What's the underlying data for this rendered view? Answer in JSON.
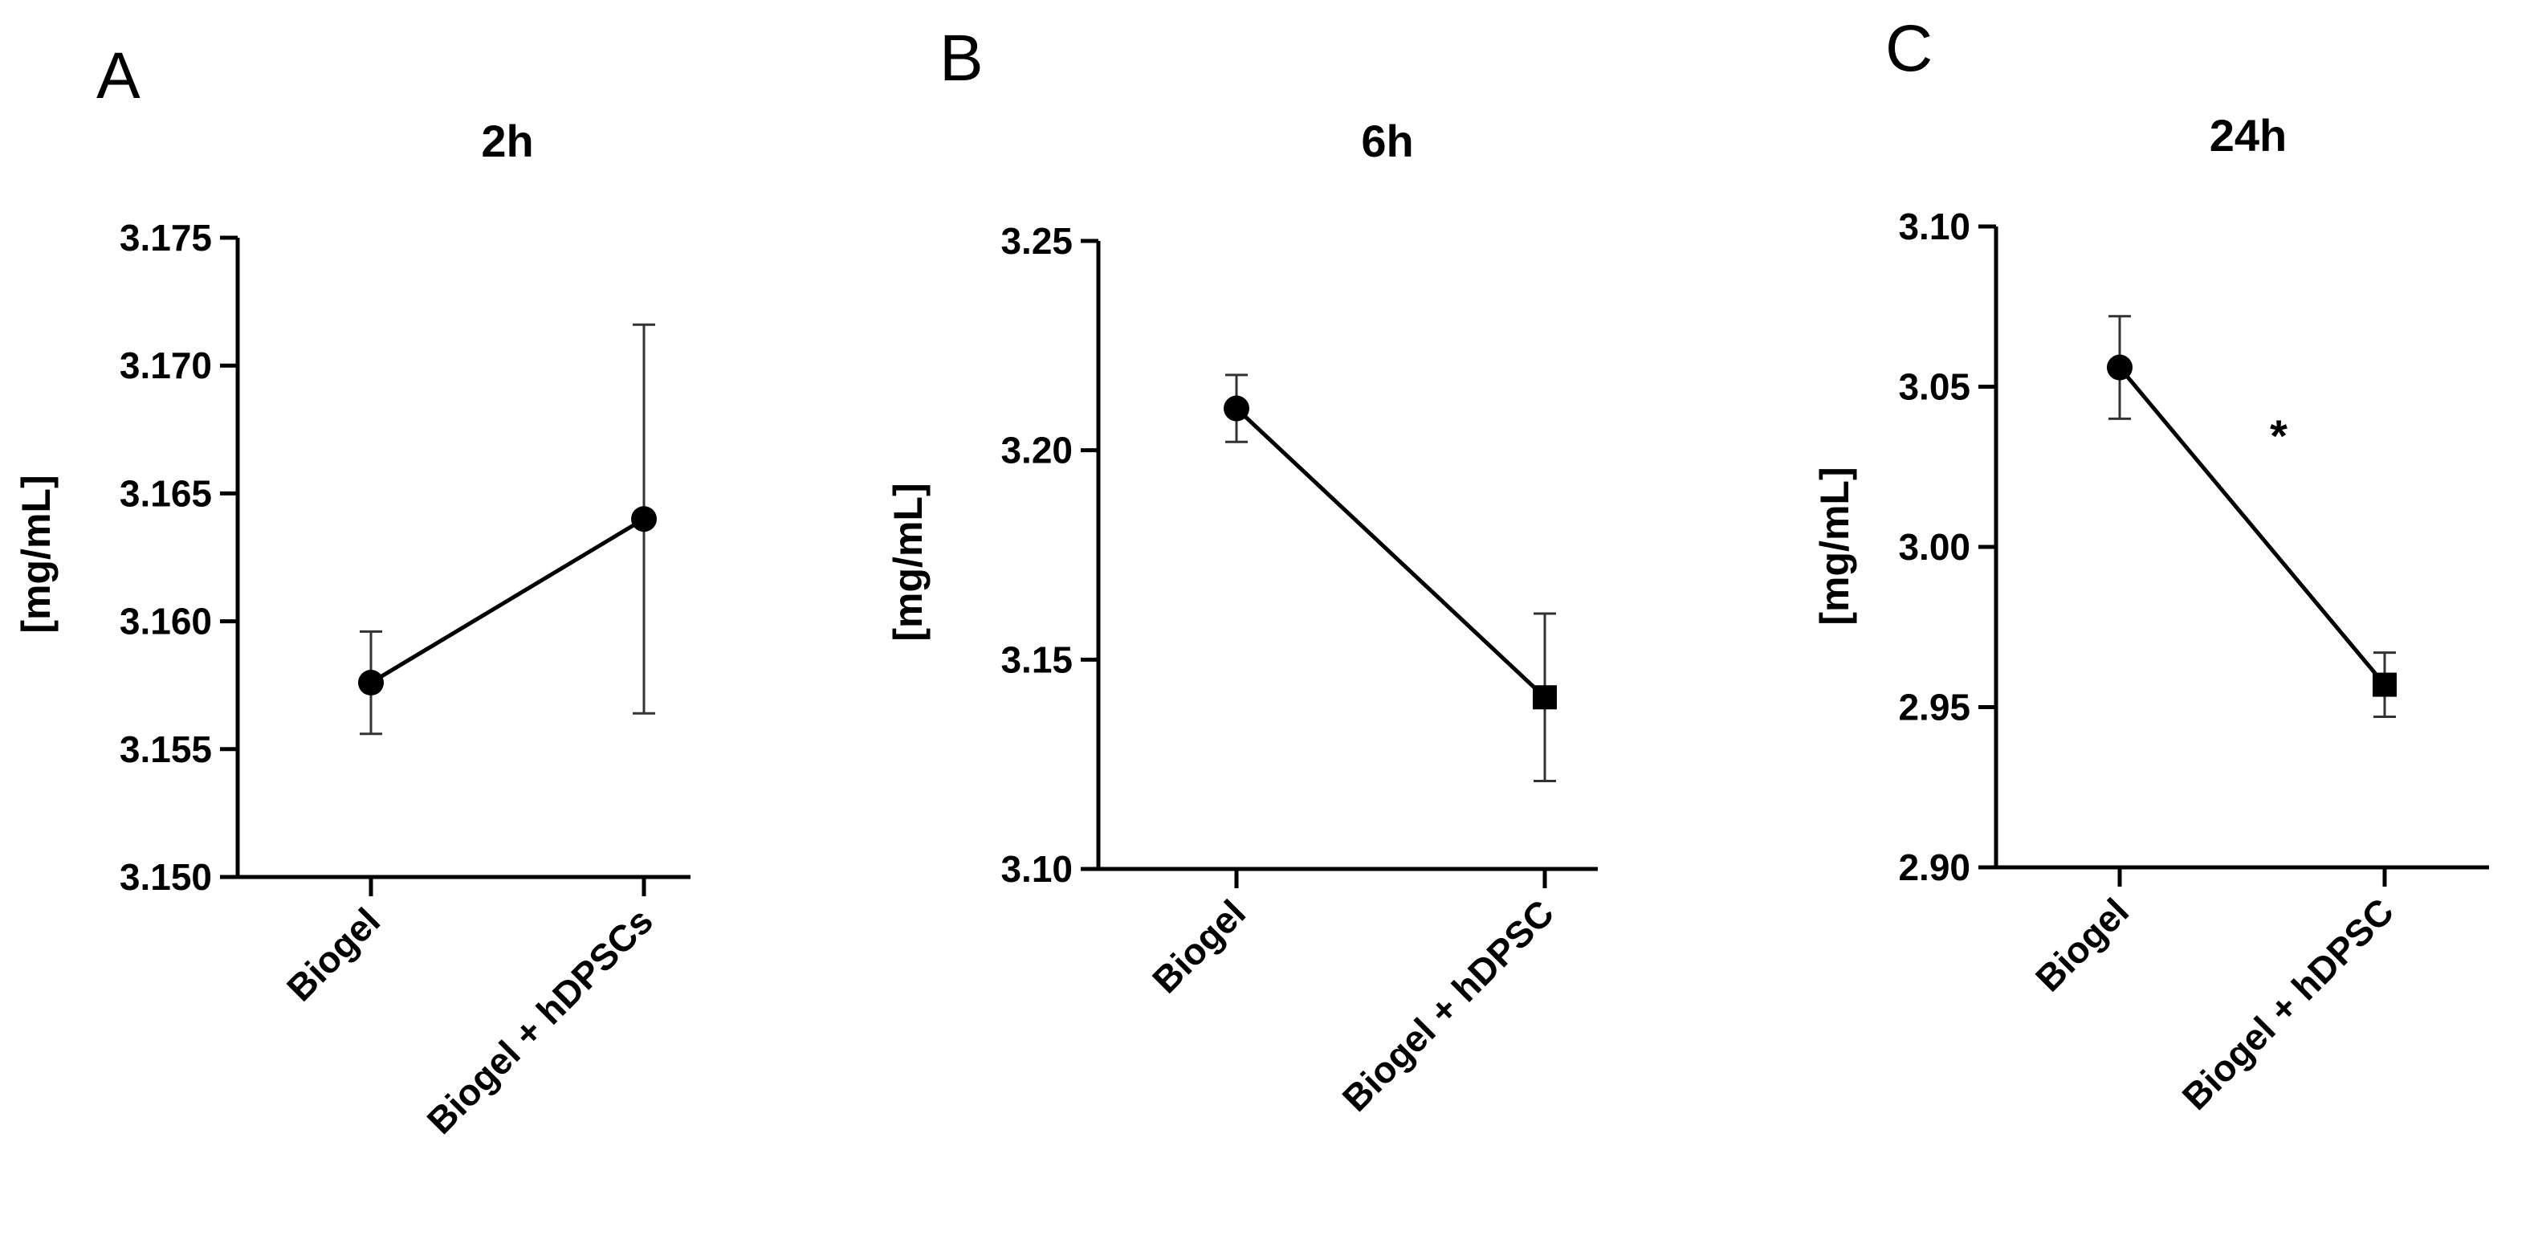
{
  "figure": {
    "panels": [
      "A",
      "B",
      "C"
    ]
  },
  "chart_data": [
    {
      "type": "line",
      "panel": "A",
      "title": "2h",
      "xlabel": "",
      "ylabel": "[mg/mL]",
      "categories": [
        "Biogel",
        "Biogel + hDPSCs"
      ],
      "ylim": [
        3.15,
        3.175
      ],
      "yticks": [
        "3.150",
        "3.155",
        "3.160",
        "3.165",
        "3.170",
        "3.175"
      ],
      "series": [
        {
          "markers": [
            "circle",
            "circle"
          ],
          "values": [
            3.1576,
            3.164
          ],
          "errors": [
            0.002,
            0.0076
          ]
        }
      ],
      "annotations": [],
      "grid": false
    },
    {
      "type": "line",
      "panel": "B",
      "title": "6h",
      "xlabel": "",
      "ylabel": "[mg/mL]",
      "categories": [
        "Biogel",
        "Biogel + hDPSC"
      ],
      "ylim": [
        3.1,
        3.25
      ],
      "yticks": [
        "3.10",
        "3.15",
        "3.20",
        "3.25"
      ],
      "series": [
        {
          "markers": [
            "circle",
            "square"
          ],
          "values": [
            3.21,
            3.141
          ],
          "errors": [
            0.008,
            0.02
          ]
        }
      ],
      "annotations": [],
      "grid": false
    },
    {
      "type": "line",
      "panel": "C",
      "title": "24h",
      "xlabel": "",
      "ylabel": "[mg/mL]",
      "categories": [
        "Biogel",
        "Biogel + hDPSC"
      ],
      "ylim": [
        2.9,
        3.1
      ],
      "yticks": [
        "2.90",
        "2.95",
        "3.00",
        "3.05",
        "3.10"
      ],
      "series": [
        {
          "markers": [
            "circle",
            "square"
          ],
          "values": [
            3.056,
            2.957
          ],
          "errors": [
            0.016,
            0.01
          ]
        }
      ],
      "annotations": [
        "*"
      ],
      "grid": false
    }
  ]
}
